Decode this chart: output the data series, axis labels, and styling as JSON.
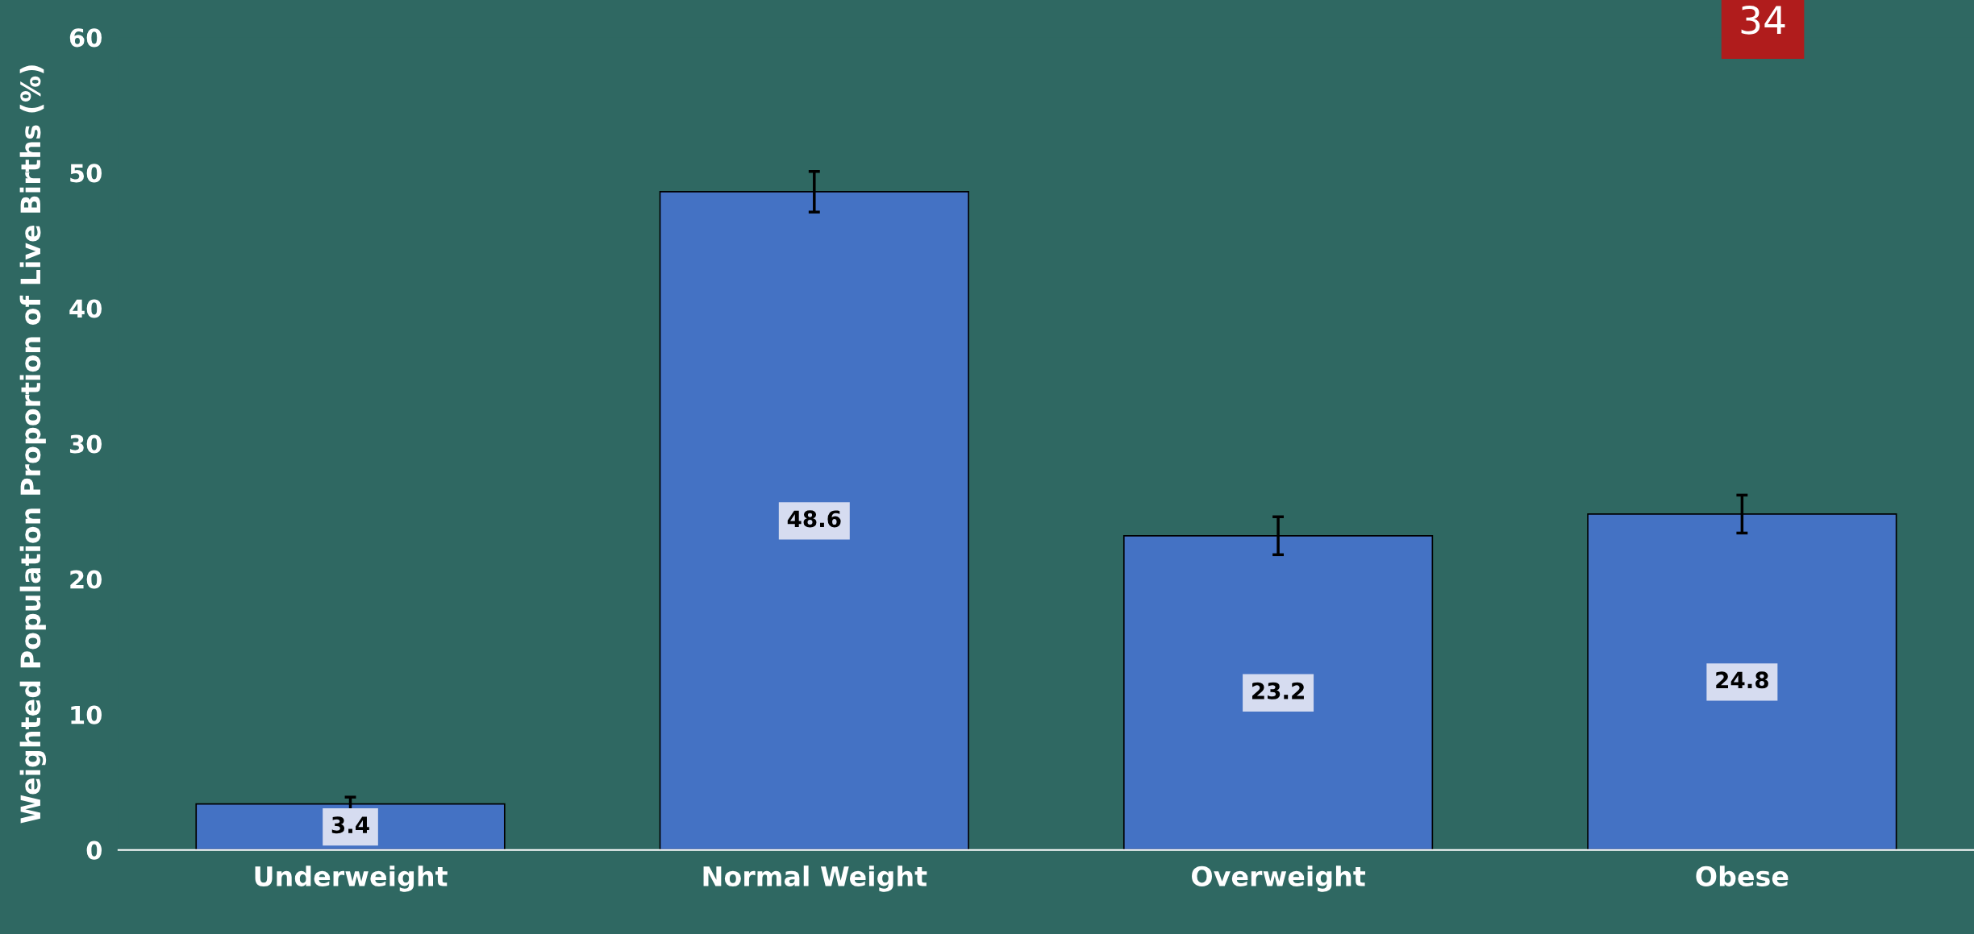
{
  "chart_data": {
    "type": "bar",
    "ylabel": "Weighted Population Proportion of Live Births (%)",
    "categories": [
      "Underweight",
      "Normal Weight",
      "Overweight",
      "Obese"
    ],
    "values": [
      3.4,
      48.6,
      23.2,
      24.8
    ],
    "errors": [
      0.5,
      1.5,
      1.4,
      1.4
    ],
    "color": "#4472c4",
    "ylim": [
      0,
      60
    ],
    "yticks": [
      0,
      10,
      20,
      30,
      40,
      50,
      60
    ],
    "grid": false,
    "data_labels": true,
    "annotations": [
      "34"
    ]
  }
}
